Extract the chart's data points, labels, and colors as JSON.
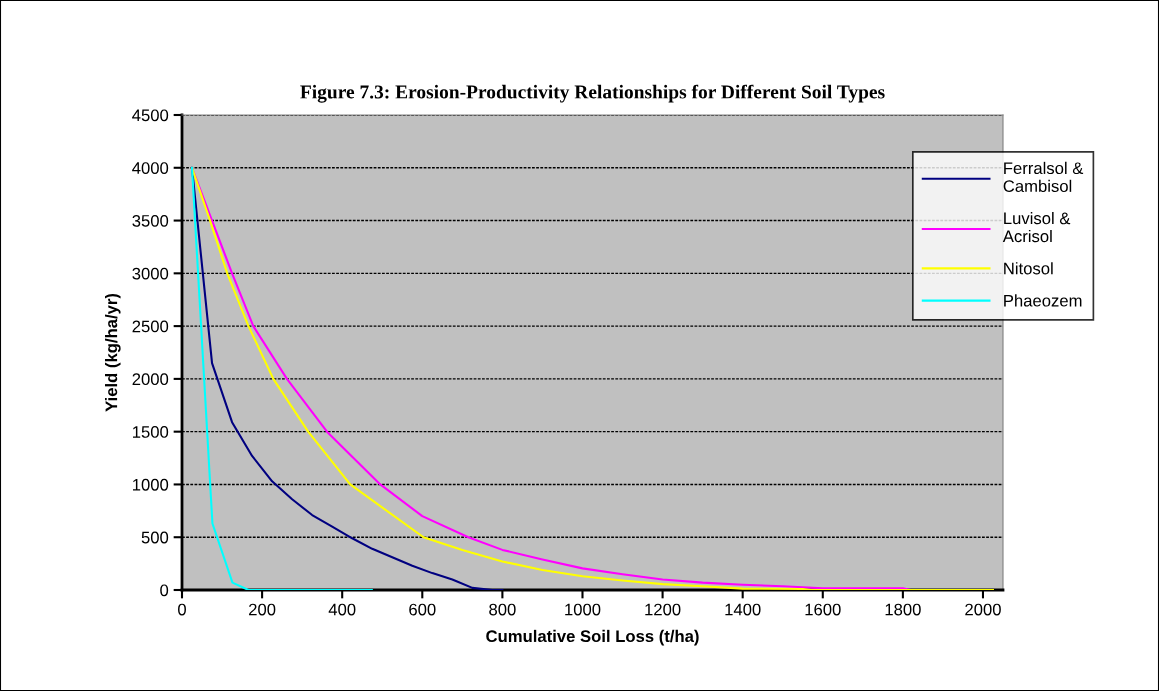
{
  "chart_data": {
    "type": "line",
    "title": "Figure 7.3: Erosion-Productivity Relationships for Different Soil Types",
    "xlabel": "Cumulative Soil Loss (t/ha)",
    "ylabel": "Yield (kg/ha/yr)",
    "xlim": [
      0,
      2050
    ],
    "xticks": [
      0,
      200,
      400,
      600,
      800,
      1000,
      1200,
      1400,
      1600,
      1800,
      2000
    ],
    "ylim": [
      0,
      4500
    ],
    "yticks": [
      0,
      500,
      1000,
      1500,
      2000,
      2500,
      3000,
      3500,
      4000,
      4500
    ],
    "grid": "y",
    "legend": "top right",
    "marker": "none",
    "line_style": "solid",
    "series": [
      {
        "name": "Ferralsol & Cambisol",
        "color": "#000080",
        "x": [
          25,
          75,
          125,
          175,
          225,
          275,
          325,
          375,
          425,
          475,
          525,
          575,
          625,
          675,
          725,
          775,
          800
        ],
        "values": [
          4000,
          2150,
          1590,
          1270,
          1030,
          860,
          710,
          600,
          490,
          390,
          310,
          230,
          160,
          100,
          20,
          0,
          0
        ]
      },
      {
        "name": "Luvisol & Acrisol",
        "color": "#ff00ff",
        "x": [
          25,
          75,
          125,
          178,
          262,
          362,
          495,
          600,
          715,
          800,
          900,
          1000,
          1100,
          1200,
          1300,
          1400,
          1500,
          1600,
          1800,
          1820
        ],
        "values": [
          4000,
          3500,
          3000,
          2500,
          2000,
          1500,
          1000,
          700,
          500,
          380,
          290,
          205,
          150,
          100,
          70,
          50,
          35,
          16,
          16,
          0
        ]
      },
      {
        "name": "Nitosol",
        "color": "#ffff00",
        "x": [
          25,
          70,
          113,
          166,
          228,
          315,
          420,
          603,
          700,
          800,
          900,
          1000,
          1100,
          1200,
          1300,
          1400,
          1550,
          1570,
          2025
        ],
        "values": [
          4000,
          3500,
          3000,
          2500,
          2000,
          1500,
          1000,
          500,
          380,
          270,
          190,
          130,
          90,
          56,
          35,
          13,
          10,
          0,
          0
        ]
      },
      {
        "name": "Phaeozem",
        "color": "#00ffff",
        "x": [
          25,
          76,
          126,
          166,
          474
        ],
        "values": [
          4000,
          630,
          70,
          0,
          0
        ]
      }
    ]
  }
}
